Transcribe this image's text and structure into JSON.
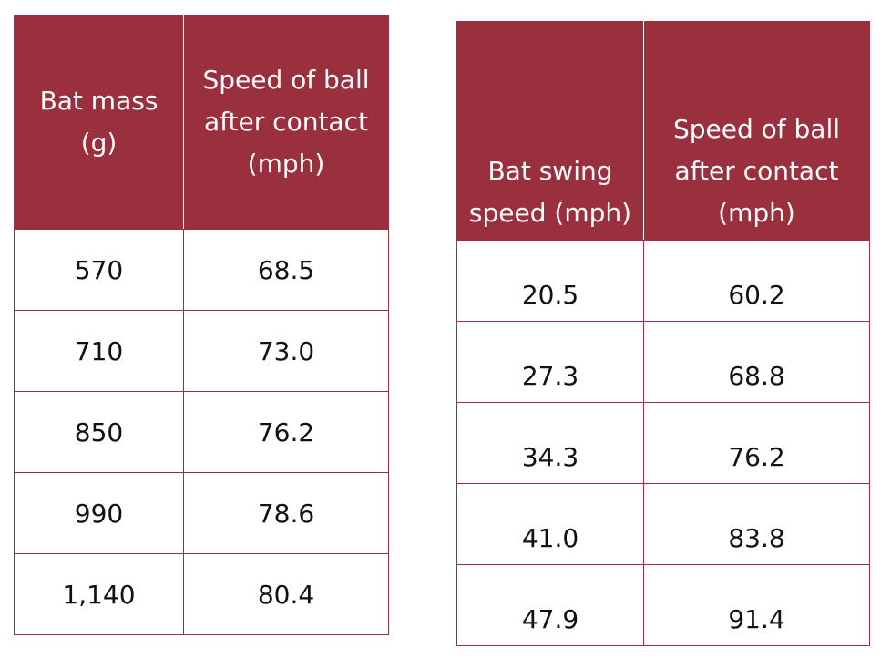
{
  "chart_data": [
    {
      "type": "table",
      "columns": [
        "Bat mass (g)",
        "Speed of ball after contact (mph)"
      ],
      "rows": [
        [
          "570",
          "68.5"
        ],
        [
          "710",
          "73.0"
        ],
        [
          "850",
          "76.2"
        ],
        [
          "990",
          "78.6"
        ],
        [
          "1,140",
          "80.4"
        ]
      ],
      "header_color": "#9a2f3e",
      "border_color": "#9b2f3e"
    },
    {
      "type": "table",
      "columns": [
        "Bat swing speed (mph)",
        "Speed of ball after contact (mph)"
      ],
      "rows": [
        [
          "20.5",
          "60.2"
        ],
        [
          "27.3",
          "68.8"
        ],
        [
          "34.3",
          "76.2"
        ],
        [
          "41.0",
          "83.8"
        ],
        [
          "47.9",
          "91.4"
        ]
      ],
      "header_color": "#9a2f3e",
      "border_color": "#9b2f3e"
    }
  ]
}
